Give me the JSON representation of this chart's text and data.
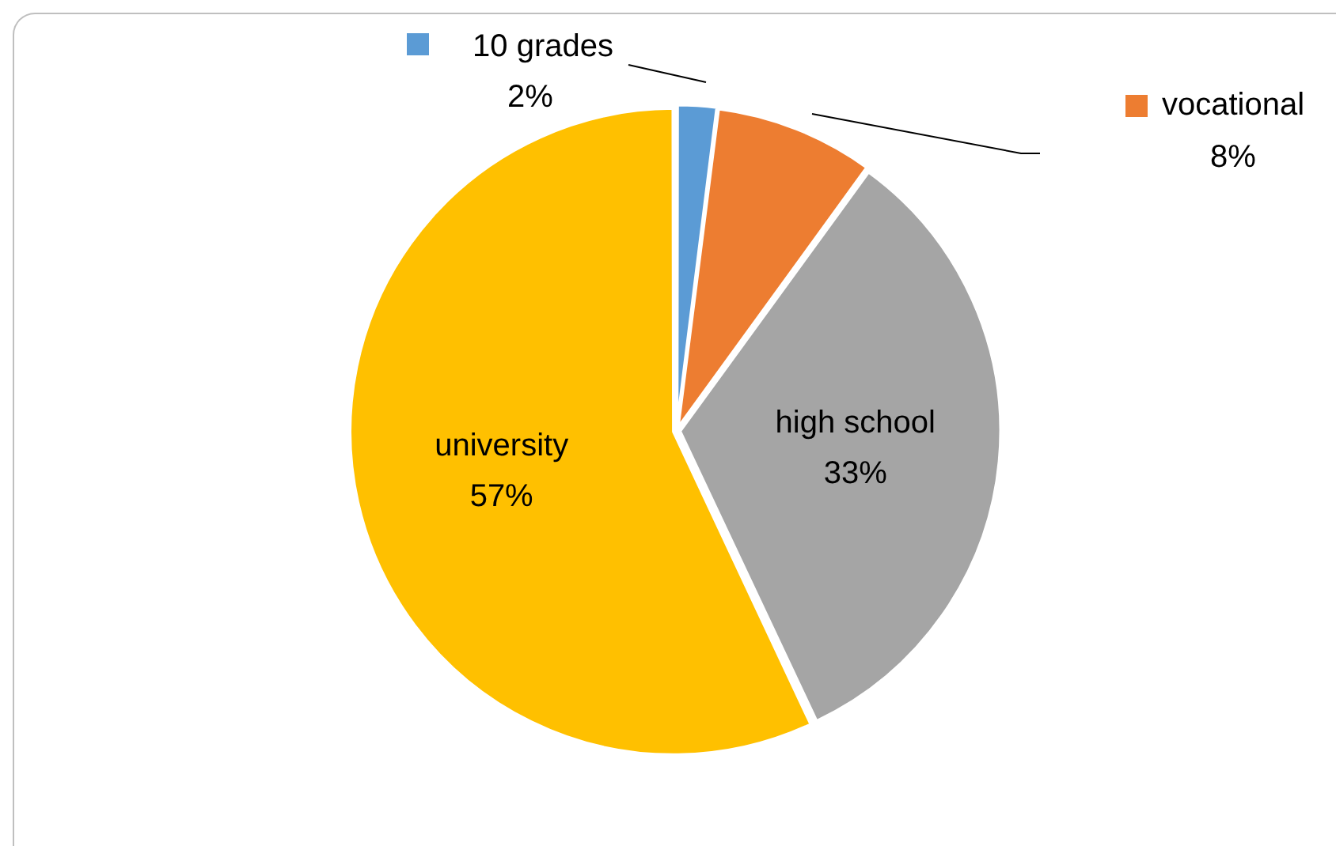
{
  "chart_data": {
    "type": "pie",
    "categories": [
      "10 grades",
      "vocational",
      "high school",
      "university"
    ],
    "values": [
      2,
      8,
      33,
      57
    ],
    "value_labels": [
      "2%",
      "8%",
      "33%",
      "57%"
    ],
    "colors": [
      "#5b9bd5",
      "#ed7d31",
      "#a5a5a5",
      "#ffc000"
    ],
    "legend": "top"
  }
}
